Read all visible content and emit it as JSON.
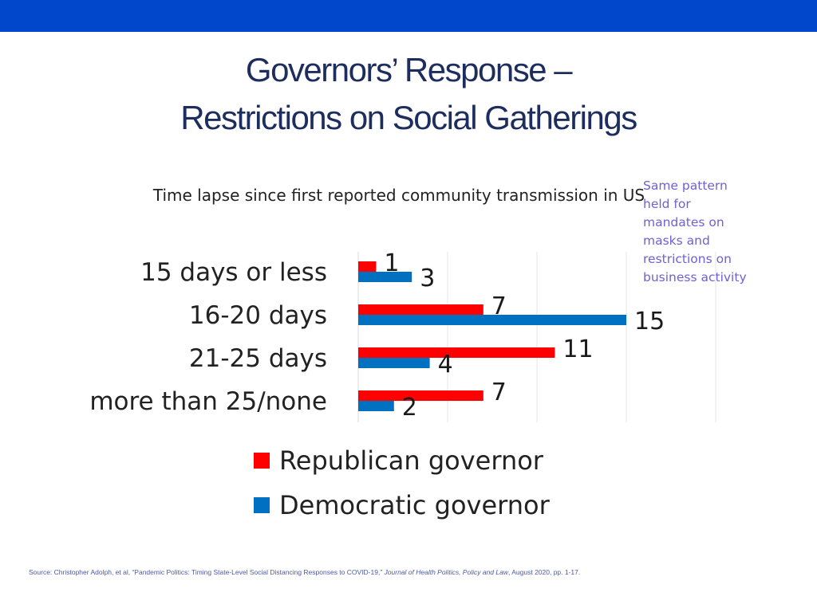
{
  "colors": {
    "top_bar": "#0047cc",
    "title": "#1c2d5e",
    "note": "#7060d8"
  },
  "title": {
    "line1": "Governors’ Response –",
    "line2": "Restrictions on Social Gatherings"
  },
  "side_note": "Same pattern held for mandates on masks and restrictions on business activity",
  "source": {
    "prefix": "Source: Christopher Adolph, et al, “Pandemic Politics: Timing State-Level Social Distancing Responses to COVID-19,”",
    "journal": "Journal of Health Politics, Policy and Law",
    "suffix": ",  August 2020, pp. 1-17."
  },
  "chart_data": {
    "type": "bar",
    "orientation": "horizontal",
    "title": "Time lapse since first reported community transmission in US",
    "categories": [
      "15 days or less",
      "16-20 days",
      "21-25 days",
      "more than 25/none"
    ],
    "series": [
      {
        "name": "Republican governor",
        "values": [
          1,
          7,
          11,
          7
        ],
        "color": "#ff0000"
      },
      {
        "name": "Democratic governor",
        "values": [
          3,
          15,
          4,
          2
        ],
        "color": "#0070c0"
      }
    ],
    "xlim": [
      0,
      20
    ],
    "gridlines": [
      5,
      10,
      15,
      20
    ],
    "grid": true,
    "legend_position": "bottom",
    "data_labels": true
  }
}
